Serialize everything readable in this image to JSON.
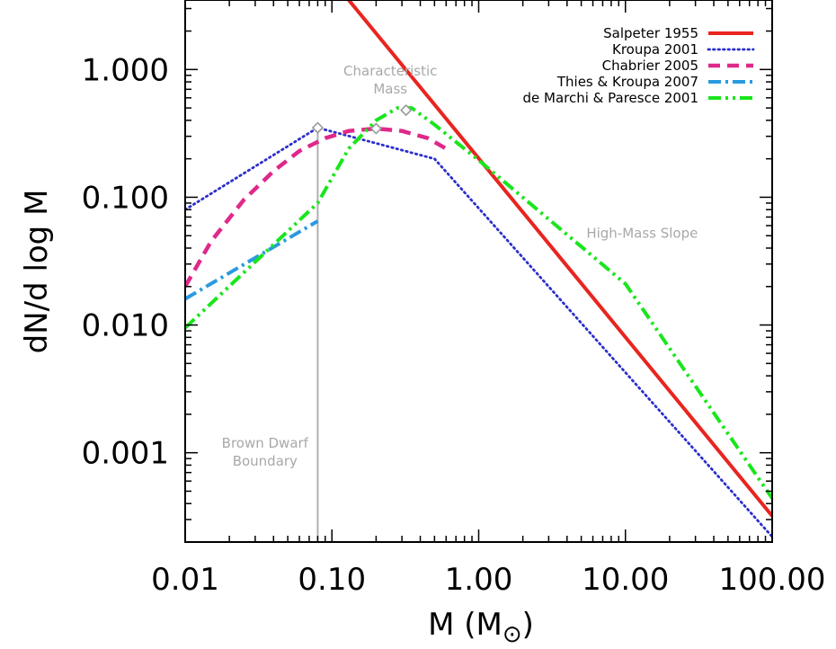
{
  "chart_data": {
    "type": "line",
    "title": "",
    "xlabel": "M (M",
    "xlabel_sub": "⊙",
    "xlabel_close": ")",
    "ylabel": "dN/d log M",
    "xscale": "log",
    "yscale": "log",
    "xlim": [
      0.01,
      100
    ],
    "ylim": [
      0.0002,
      3.5
    ],
    "xticks": [
      {
        "value": 0.01,
        "label": "0.01"
      },
      {
        "value": 0.1,
        "label": "0.10"
      },
      {
        "value": 1,
        "label": "1.00"
      },
      {
        "value": 10,
        "label": "10.00"
      },
      {
        "value": 100,
        "label": "100.00"
      }
    ],
    "yticks": [
      {
        "value": 0.001,
        "label": "0.001"
      },
      {
        "value": 0.01,
        "label": "0.010"
      },
      {
        "value": 0.1,
        "label": "0.100"
      },
      {
        "value": 1,
        "label": "1.000"
      }
    ],
    "legend_position": "top-right",
    "series": [
      {
        "name": "Salpeter 1955",
        "color": "#e8251f",
        "style": "solid",
        "points": [
          [
            0.13,
            3.5
          ],
          [
            100,
            0.00032
          ]
        ]
      },
      {
        "name": "Kroupa 2001",
        "color": "#2b2fcc",
        "style": "dotted",
        "points": [
          [
            0.01,
            0.08
          ],
          [
            0.08,
            0.35
          ],
          [
            0.5,
            0.2
          ],
          [
            100,
            0.00022
          ]
        ]
      },
      {
        "name": "Chabrier 2005",
        "color": "#e0288a",
        "style": "dashed",
        "points": [
          [
            0.01,
            0.02
          ],
          [
            0.015,
            0.045
          ],
          [
            0.025,
            0.095
          ],
          [
            0.04,
            0.16
          ],
          [
            0.06,
            0.23
          ],
          [
            0.09,
            0.29
          ],
          [
            0.13,
            0.33
          ],
          [
            0.2,
            0.345
          ],
          [
            0.3,
            0.33
          ],
          [
            0.45,
            0.29
          ],
          [
            0.6,
            0.24
          ]
        ]
      },
      {
        "name": "Thies & Kroupa 2007",
        "color": "#2a9ae0",
        "style": "dashdot",
        "points": [
          [
            0.01,
            0.016
          ],
          [
            0.08,
            0.065
          ]
        ]
      },
      {
        "name": "de Marchi & Paresce 2001",
        "color": "#19e61c",
        "style": "dashdotdot",
        "points": [
          [
            0.01,
            0.0095
          ],
          [
            0.08,
            0.09
          ],
          [
            0.13,
            0.24
          ],
          [
            0.2,
            0.4
          ],
          [
            0.28,
            0.5
          ],
          [
            0.35,
            0.5
          ],
          [
            0.5,
            0.37
          ],
          [
            1,
            0.195
          ],
          [
            10,
            0.021
          ],
          [
            100,
            0.00044
          ]
        ]
      }
    ],
    "markers": [
      {
        "x": 0.08,
        "y": 0.35
      },
      {
        "x": 0.2,
        "y": 0.345
      },
      {
        "x": 0.32,
        "y": 0.48
      }
    ],
    "reference_line": {
      "x": 0.08
    },
    "annotations": [
      {
        "lines": [
          "Characteristic",
          "Mass"
        ],
        "x": 0.25,
        "y": 0.9
      },
      {
        "lines": [
          "Brown Dwarf",
          "Boundary"
        ],
        "x": 0.035,
        "y": 0.0011
      },
      {
        "lines": [
          "High-Mass Slope"
        ],
        "x": 13,
        "y": 0.048
      }
    ]
  }
}
